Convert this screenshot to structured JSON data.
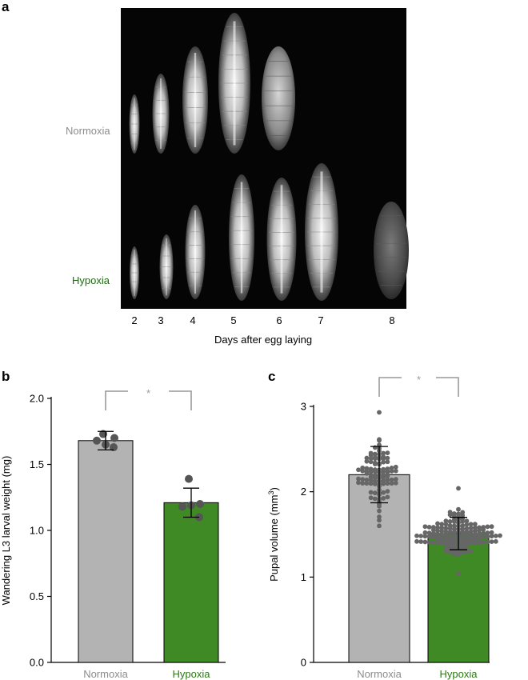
{
  "panels": {
    "a": {
      "letter": "a"
    },
    "b": {
      "letter": "b"
    },
    "c": {
      "letter": "c"
    }
  },
  "photo": {
    "row_labels": [
      {
        "text": "Normoxia",
        "color": "#8c8c8c"
      },
      {
        "text": "Hypoxia",
        "color": "#1e6b0f"
      }
    ],
    "day_labels": [
      "2",
      "3",
      "4",
      "5",
      "6",
      "7",
      "8"
    ],
    "xlabel": "Days after egg laying",
    "normoxia_stages": [
      "larva",
      "larva",
      "larva",
      "larva",
      "pupa"
    ],
    "hypoxia_stages": [
      "larva",
      "larva",
      "larva",
      "larva",
      "larva",
      "larva",
      "pupa"
    ]
  },
  "chart_data": [
    {
      "type": "bar",
      "panel": "b",
      "categories": [
        "Normoxia",
        "Hypoxia"
      ],
      "category_colors": [
        "#8c8c8c",
        "#2b7a12"
      ],
      "bar_colors": [
        "#b3b3b3",
        "#3f8a24"
      ],
      "values": [
        1.68,
        1.21
      ],
      "error_bars": [
        0.07,
        0.11
      ],
      "points": [
        [
          1.73,
          1.68,
          1.65,
          1.7,
          1.63
        ],
        [
          1.39,
          1.18,
          1.19,
          1.2,
          1.1
        ]
      ],
      "xlabel": "",
      "ylabel": "Wandering L3 larval weight (mg)",
      "ylim": [
        0,
        2.0
      ],
      "yticks": [
        "0.0",
        "0.5",
        "1.0",
        "1.5",
        "2.0"
      ],
      "significance": "*"
    },
    {
      "type": "bar",
      "panel": "c",
      "categories": [
        "Normoxia",
        "Hypoxia"
      ],
      "category_colors": [
        "#8c8c8c",
        "#2b7a12"
      ],
      "bar_colors": [
        "#b3b3b3",
        "#3f8a24"
      ],
      "values": [
        2.2,
        1.51
      ],
      "error_bars": [
        0.33,
        0.19
      ],
      "points_n": [
        100,
        150
      ],
      "points_range": [
        [
          1.6,
          2.93
        ],
        [
          1.04,
          2.04
        ]
      ],
      "xlabel": "",
      "ylabel": "Pupal volume (mm",
      "ylabel_sup": "3",
      "ylabel_end": ")",
      "ylim": [
        0,
        3
      ],
      "yticks": [
        "0",
        "1",
        "2",
        "3"
      ],
      "significance": "*"
    }
  ]
}
